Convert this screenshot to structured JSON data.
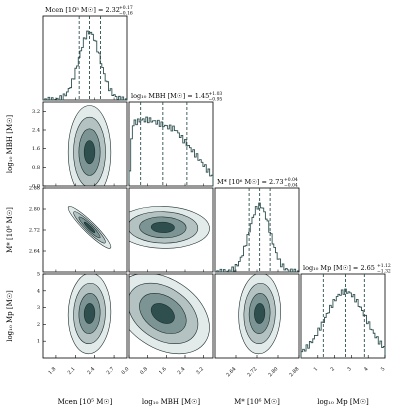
{
  "chart_data": {
    "type": "corner",
    "colors": {
      "line": "#2f4f4f",
      "fill": [
        "#e3eaea",
        "#b4c2c2",
        "#7c9594",
        "#2f4f4f"
      ],
      "axis": "#000000"
    },
    "params": [
      {
        "label_html": "M<tspan font-size='6'>cen</tspan> [10⁵ M☉]",
        "axis_label": "Mcen [10⁵ M☉]",
        "title": "Mcen [10⁵ M☉] = 2.32",
        "title_sup": "+0.17",
        "title_sub": "−0.16",
        "range": [
          1.6,
          2.9
        ],
        "ticks": [
          1.8,
          2.1,
          2.4,
          2.7
        ],
        "tick_labels": [
          "1.8",
          "2.1",
          "2.4",
          "2.7"
        ],
        "median": 2.32,
        "q16": 2.16,
        "q84": 2.49,
        "sigma": 0.165,
        "flat": false
      },
      {
        "axis_label": "log₁₀ MBH [M☉]",
        "title": "log₁₀ MBH [M☉] = 1.45",
        "title_sup": "+1.03",
        "title_sub": "−0.95",
        "range": [
          0.0,
          3.6
        ],
        "ticks": [
          0.0,
          0.8,
          1.6,
          2.4,
          3.2
        ],
        "tick_labels": [
          "0.0",
          "0.8",
          "1.6",
          "2.4",
          "3.2"
        ],
        "median": 1.45,
        "q16": 0.5,
        "q84": 2.48,
        "sigma": 1.0,
        "flat": true
      },
      {
        "axis_label": "M* [10⁶ M☉]",
        "title": "M* [10⁶ M☉] = 2.73",
        "title_sup": "+0.04",
        "title_sub": "−0.04",
        "range": [
          2.56,
          2.88
        ],
        "ticks": [
          2.64,
          2.72,
          2.8,
          2.88
        ],
        "tick_labels": [
          "2.64",
          "2.72",
          "2.80",
          "2.88"
        ],
        "median": 2.73,
        "q16": 2.69,
        "q84": 2.77,
        "sigma": 0.04,
        "flat": false
      },
      {
        "axis_label": "log₁₀ Mp [M☉]",
        "title": "log₁₀ Mp [M☉] = 2.65",
        "title_sup": "+1.12",
        "title_sub": "−1.32",
        "range": [
          0.0,
          5.0
        ],
        "ticks": [
          1,
          2,
          3,
          4,
          5
        ],
        "tick_labels": [
          "1",
          "2",
          "3",
          "4",
          "5"
        ],
        "median": 2.65,
        "q16": 1.33,
        "q84": 3.77,
        "sigma": 1.2,
        "flat": false
      }
    ],
    "ylabels": [
      "log₁₀ MBH [M☉]",
      "M* [10⁶ M☉]",
      "log₁₀ Mp [M☉]"
    ],
    "correlations": [
      {
        "x": 0,
        "y": 1,
        "rho": 0.0
      },
      {
        "x": 0,
        "y": 2,
        "rho": -0.93
      },
      {
        "x": 1,
        "y": 2,
        "rho": -0.05
      },
      {
        "x": 0,
        "y": 3,
        "rho": 0.05
      },
      {
        "x": 1,
        "y": 3,
        "rho": -0.35
      },
      {
        "x": 2,
        "y": 3,
        "rho": 0.05
      }
    ],
    "contour_levels_sigma": [
      0.5,
      1.0,
      1.5,
      2.0
    ]
  }
}
